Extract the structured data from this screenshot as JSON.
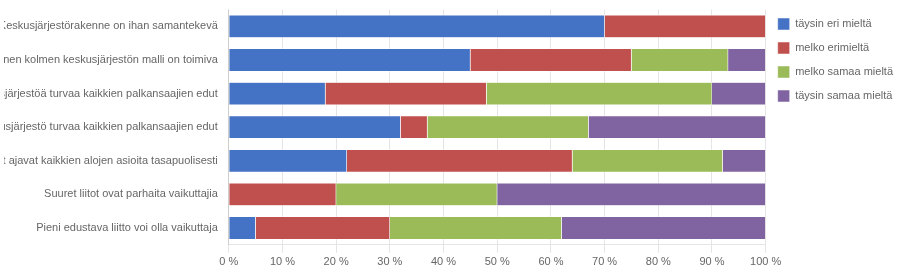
{
  "chart_data": {
    "type": "bar",
    "orientation": "horizontal",
    "stacked": true,
    "categories": [
      "Keskusjärjestörakenne on ihan samantekevä",
      "Nykyinen kolmen keskusjärjestön malli on toimiva",
      "Kaksi keskusjärjestöä turvaa kaikkien palkansaajien edut",
      "Yksi keskusjärjestö turvaa kaikkien palkansaajien edut",
      "Suuret liitot ajavat kaikkien alojen asioita tasapuolisesti",
      "Suuret liitot ovat parhaita vaikuttajia",
      "Pieni edustava liitto voi olla vaikuttaja"
    ],
    "series": [
      {
        "name": "täysin eri mieltä",
        "color": "#4472C4",
        "values": [
          70,
          45,
          18,
          32,
          22,
          0,
          5
        ]
      },
      {
        "name": "melko erimieltä",
        "color": "#C0504D",
        "values": [
          30,
          30,
          30,
          5,
          42,
          20,
          25
        ]
      },
      {
        "name": "melko samaa mieltä",
        "color": "#9BBB59",
        "values": [
          0,
          18,
          42,
          30,
          28,
          30,
          32
        ]
      },
      {
        "name": "täysin samaa mieltä",
        "color": "#8064A2",
        "values": [
          0,
          7,
          10,
          33,
          8,
          50,
          38
        ]
      }
    ],
    "xlim": [
      0,
      100
    ],
    "xticks": [
      {
        "value": 0,
        "label": "0 %"
      },
      {
        "value": 10,
        "label": "10 %"
      },
      {
        "value": 20,
        "label": "20 %"
      },
      {
        "value": 30,
        "label": "30 %"
      },
      {
        "value": 40,
        "label": "40 %"
      },
      {
        "value": 50,
        "label": "50 %"
      },
      {
        "value": 60,
        "label": "60 %"
      },
      {
        "value": 70,
        "label": "70 %"
      },
      {
        "value": 80,
        "label": "80 %"
      },
      {
        "value": 90,
        "label": "90 %"
      },
      {
        "value": 100,
        "label": "100 %"
      }
    ],
    "grid": true,
    "legend": "right"
  }
}
